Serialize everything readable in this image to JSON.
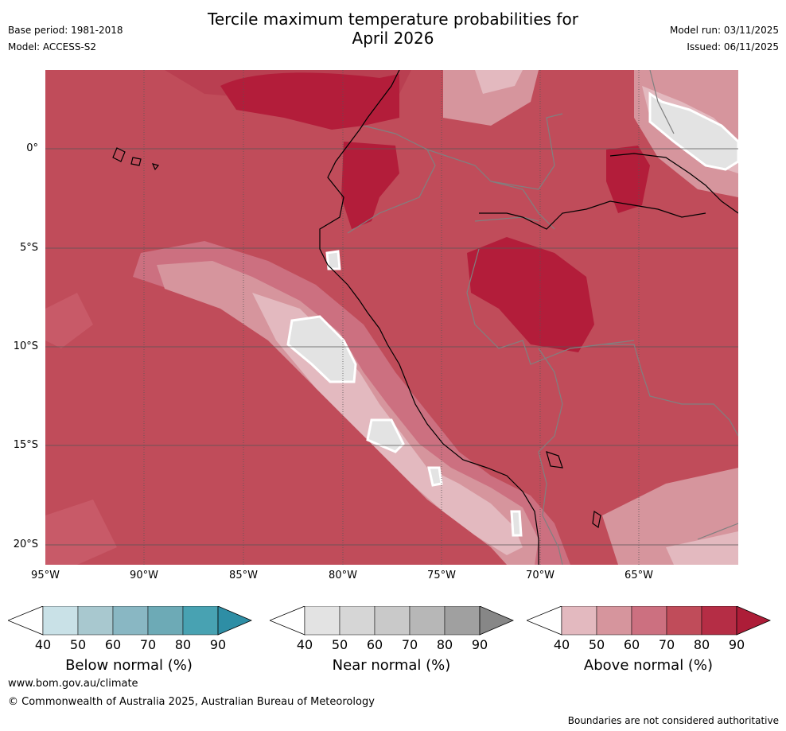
{
  "header": {
    "title_line1": "Tercile maximum temperature probabilities for",
    "title_line2": "April 2026",
    "base_period": "Base period: 1981-2018",
    "model": "Model: ACCESS-S2",
    "model_run": "Model run: 03/11/2025",
    "issued": "Issued: 06/11/2025"
  },
  "map": {
    "lat_labels": [
      "0°",
      "5°S",
      "10°S",
      "15°S",
      "20°S"
    ],
    "lon_labels": [
      "95°W",
      "90°W",
      "85°W",
      "80°W",
      "75°W",
      "70°W",
      "65°W"
    ],
    "colors": {
      "ocean_base": "#c04c5a",
      "land_base": "#c0475a",
      "above_90": "#b31d3a",
      "above_60": "#cc7080",
      "above_50": "#d6959d",
      "above_40": "#e3b9bf",
      "near_white": "#e3e3e3",
      "grid": "#555555",
      "coast": "#000000",
      "border": "#808080"
    }
  },
  "colorbars": [
    {
      "name": "below",
      "label": "Below normal (%)",
      "ticks": [
        "40",
        "50",
        "60",
        "70",
        "80",
        "90"
      ],
      "colors": [
        "#c9e1e7",
        "#a8c8cf",
        "#89b7c3",
        "#6daab6",
        "#48a2b2",
        "#2e8ea5"
      ]
    },
    {
      "name": "near",
      "label": "Near normal (%)",
      "ticks": [
        "40",
        "50",
        "60",
        "70",
        "80",
        "90"
      ],
      "colors": [
        "#e3e3e3",
        "#d6d6d6",
        "#c9c9c9",
        "#b7b7b7",
        "#a0a0a0",
        "#878787"
      ]
    },
    {
      "name": "above",
      "label": "Above normal (%)",
      "ticks": [
        "40",
        "50",
        "60",
        "70",
        "80",
        "90"
      ],
      "colors": [
        "#e3b9bf",
        "#d6959d",
        "#cc7080",
        "#c04c5a",
        "#b52d45",
        "#ad1d38"
      ]
    }
  ],
  "footer": {
    "website": "www.bom.gov.au/climate",
    "copyright": "© Commonwealth of Australia 2025, Australian Bureau of Meteorology",
    "disclaimer": "Boundaries are not considered authoritative"
  }
}
